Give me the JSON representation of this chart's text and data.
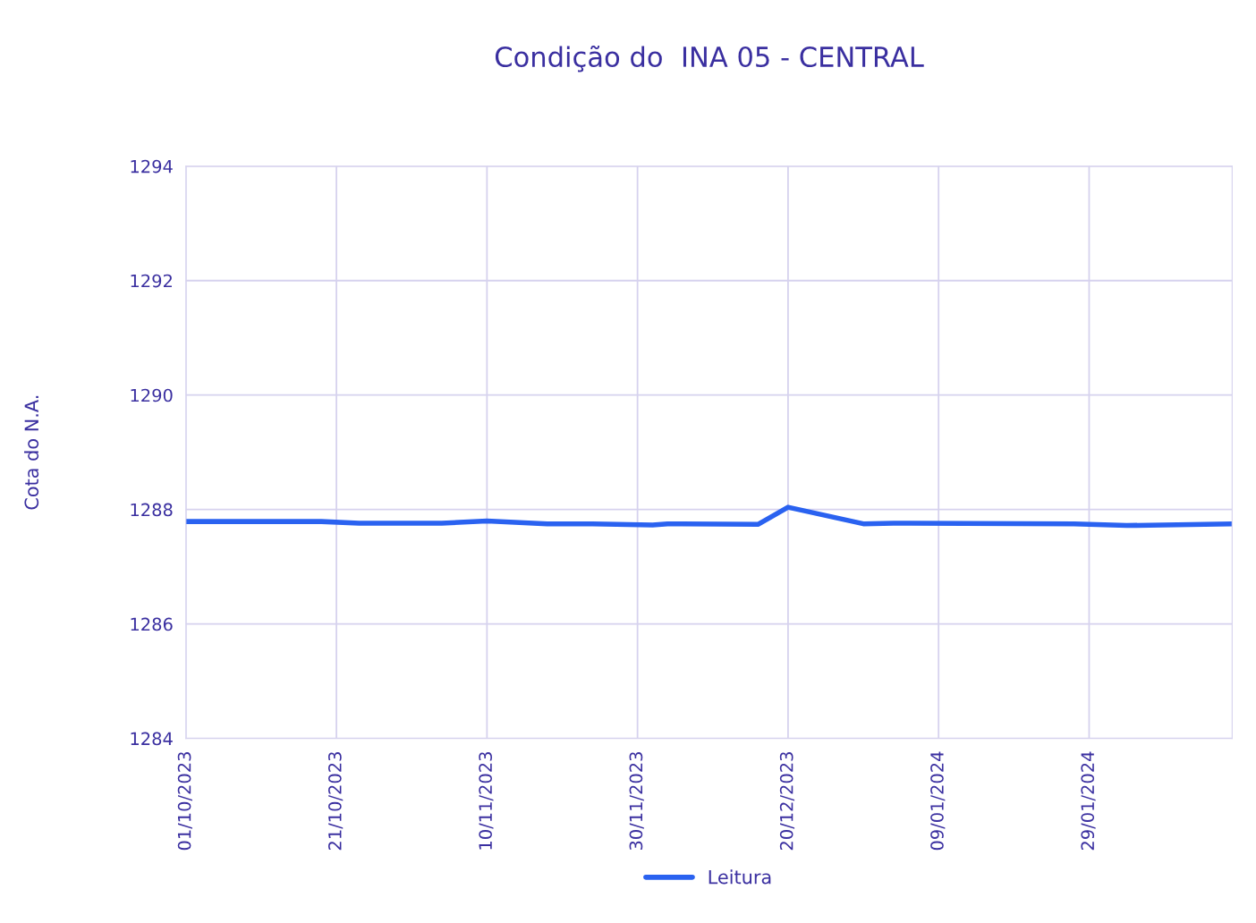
{
  "chart_data": {
    "type": "line",
    "title": "Condição do  INA 05 - CENTRAL",
    "ylabel": "Cota do N.A.",
    "x": [
      "2023-10-01",
      "2023-10-19",
      "2023-10-24",
      "2023-11-04",
      "2023-11-10",
      "2023-11-18",
      "2023-11-24",
      "2023-12-02",
      "2023-12-04",
      "2023-12-16",
      "2023-12-20",
      "2023-12-30",
      "2024-01-03",
      "2024-01-27",
      "2024-02-03",
      "2024-02-17"
    ],
    "series": [
      {
        "name": "Leitura",
        "color": "#2a62f0",
        "values": [
          1287.79,
          1287.79,
          1287.76,
          1287.76,
          1287.8,
          1287.75,
          1287.75,
          1287.73,
          1287.75,
          1287.74,
          1288.04,
          1287.75,
          1287.76,
          1287.75,
          1287.72,
          1287.75
        ]
      }
    ],
    "xlim": [
      "2023-10-01",
      "2024-02-17"
    ],
    "xticks": [
      {
        "value": "2023-10-01",
        "label": "01/10/2023"
      },
      {
        "value": "2023-10-21",
        "label": "21/10/2023"
      },
      {
        "value": "2023-11-10",
        "label": "10/11/2023"
      },
      {
        "value": "2023-11-30",
        "label": "30/11/2023"
      },
      {
        "value": "2023-12-20",
        "label": "20/12/2023"
      },
      {
        "value": "2024-01-09",
        "label": "09/01/2024"
      },
      {
        "value": "2024-01-29",
        "label": "29/01/2024"
      }
    ],
    "ylim": [
      1284,
      1294
    ],
    "yticks": [
      1284,
      1286,
      1288,
      1290,
      1292,
      1294
    ],
    "grid": true,
    "legend": "bottom",
    "marker": "none",
    "line_style": "solid"
  }
}
